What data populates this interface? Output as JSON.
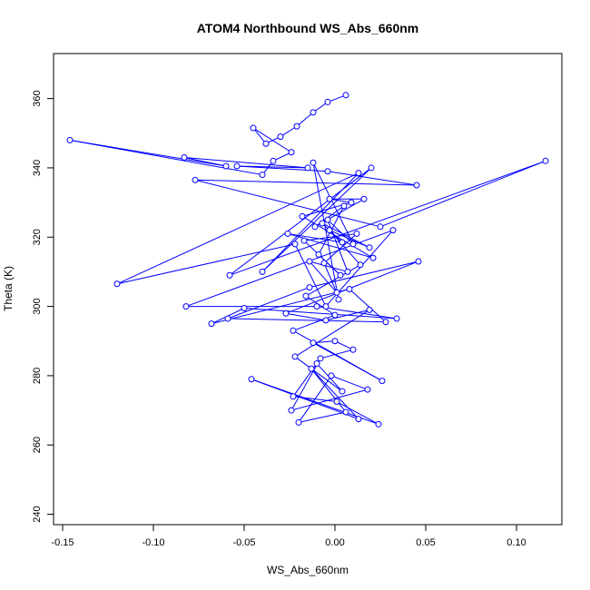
{
  "chart_data": {
    "type": "scatter",
    "title": "ATOM4 Northbound WS_Abs_660nm",
    "xlabel": "WS_Abs_660nm",
    "ylabel": "Theta (K)",
    "xlim": [
      -0.155,
      0.125
    ],
    "ylim": [
      237,
      373
    ],
    "xticks": [
      -0.15,
      -0.1,
      -0.05,
      0.0,
      0.05,
      0.1
    ],
    "xtick_labels": [
      "-0.15",
      "-0.10",
      "-0.05",
      "0.00",
      "0.05",
      "0.10"
    ],
    "yticks": [
      240,
      260,
      280,
      300,
      320,
      340,
      360
    ],
    "ytick_labels": [
      "240",
      "260",
      "280",
      "300",
      "320",
      "340",
      "360"
    ],
    "grid": false,
    "color": "#0000ff",
    "series": [
      {
        "x": [
          0.006,
          -0.004,
          -0.012,
          -0.021,
          -0.03,
          -0.038,
          -0.045,
          -0.024,
          -0.034,
          -0.04,
          -0.146,
          -0.06,
          -0.083,
          -0.015,
          -0.054,
          -0.004,
          0.045,
          -0.077,
          0.025,
          0.116,
          -0.058,
          0.02,
          -0.04,
          0.013,
          -0.12,
          -0.022,
          -0.005,
          0.032,
          -0.082,
          -0.01,
          0.034,
          -0.05,
          -0.068,
          0.008,
          0.028,
          -0.059,
          -0.014,
          0.046,
          -0.027,
          -0.005,
          0.019,
          -0.022,
          0.004,
          -0.01,
          -0.023,
          0.001,
          0.024,
          -0.046,
          0.013,
          -0.013,
          0.006,
          -0.02,
          -0.002,
          0.018,
          -0.024,
          -0.008,
          0.01,
          0.0,
          -0.012,
          0.026,
          -0.023,
          0.0,
          -0.016,
          0.014,
          -0.003,
          0.019,
          -0.007,
          0.004,
          -0.026,
          0.021,
          -0.018,
          0.009,
          -0.003,
          0.016,
          -0.011,
          0.005,
          -0.009,
          0.003,
          -0.017,
          0.012,
          -0.006,
          0.001,
          -0.014,
          0.007,
          -0.004,
          0.01,
          -0.012,
          0.002
        ],
        "y": [
          361,
          359,
          356,
          352,
          349,
          347,
          351.5,
          344.5,
          342,
          338,
          348,
          340.5,
          343,
          340,
          340.5,
          339,
          335,
          336.5,
          323,
          342,
          309,
          340,
          310,
          338.5,
          306.5,
          318,
          300,
          322,
          300,
          300,
          296.5,
          299.5,
          295,
          305,
          295.5,
          296.5,
          305.5,
          313,
          298,
          296,
          299,
          285.5,
          275.5,
          283.5,
          274,
          272.5,
          266,
          279,
          267.5,
          282,
          269.5,
          266.5,
          280,
          276,
          270,
          285,
          287.5,
          290,
          289.5,
          278.5,
          293,
          297.5,
          303,
          312,
          322,
          317,
          324,
          318.5,
          321,
          314,
          326,
          330,
          331,
          331,
          323,
          329,
          315,
          309,
          319,
          321,
          312.5,
          304,
          313,
          310,
          325,
          318,
          341.5,
          302
        ]
      }
    ]
  }
}
